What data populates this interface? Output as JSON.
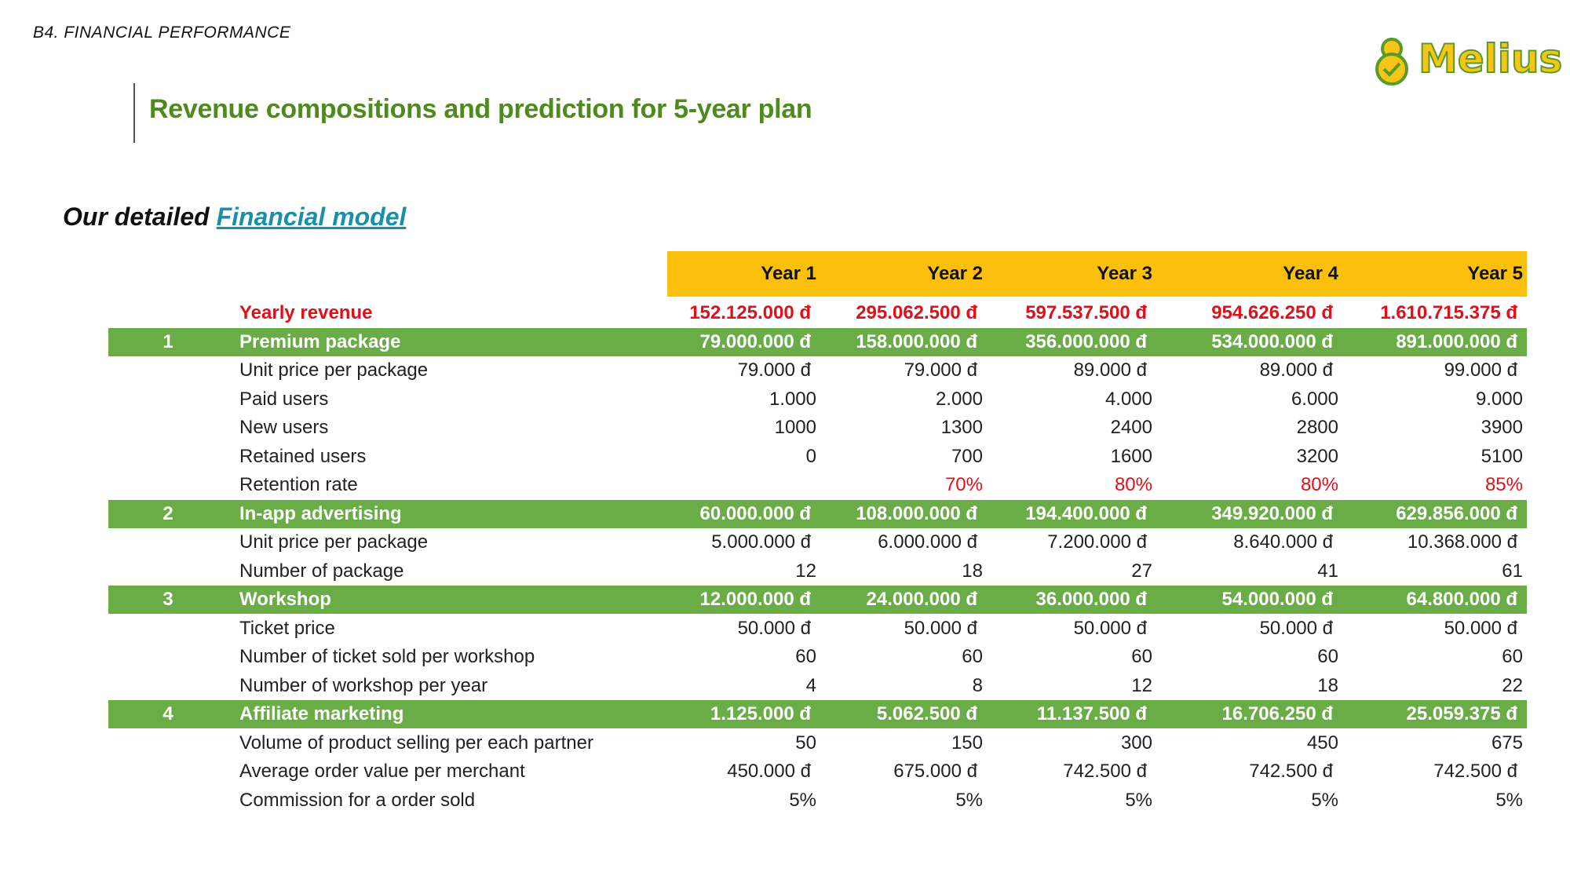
{
  "header": {
    "section": "B4. FINANCIAL PERFORMANCE",
    "logo": "Melius",
    "title": "Revenue compositions and prediction for 5-year plan"
  },
  "subtitle": {
    "text": "Our detailed",
    "link": "Financial model"
  },
  "table": {
    "columns": [
      "Year 1",
      "Year 2",
      "Year 3",
      "Year 4",
      "Year 5"
    ],
    "total": {
      "label": "Yearly revenue",
      "values": [
        "152.125.000 đ",
        "295.062.500 đ",
        "597.537.500 đ",
        "954.626.250 đ",
        "1.610.715.375 đ"
      ]
    },
    "sections": [
      {
        "number": "1",
        "label": "Premium package",
        "values": [
          "79.000.000 đ",
          "158.000.000 đ",
          "356.000.000 đ",
          "534.000.000 đ",
          "891.000.000 đ"
        ],
        "items": [
          {
            "label": "Unit price per package",
            "values": [
              "79.000 đ",
              "79.000 đ",
              "89.000 đ",
              "89.000 đ",
              "99.000 đ"
            ]
          },
          {
            "label": "Paid users",
            "values": [
              "1.000",
              "2.000",
              "4.000",
              "6.000",
              "9.000"
            ]
          },
          {
            "label": "New users",
            "values": [
              "1000",
              "1300",
              "2400",
              "2800",
              "3900"
            ]
          },
          {
            "label": "Retained users",
            "values": [
              "0",
              "700",
              "1600",
              "3200",
              "5100"
            ]
          },
          {
            "label": "Retention rate",
            "values": [
              null,
              "70%",
              "80%",
              "80%",
              "85%"
            ],
            "highlight": true
          }
        ]
      },
      {
        "number": "2",
        "label": "In-app advertising",
        "values": [
          "60.000.000 đ",
          "108.000.000 đ",
          "194.400.000 đ",
          "349.920.000 đ",
          "629.856.000 đ"
        ],
        "items": [
          {
            "label": "Unit price per package",
            "values": [
              "5.000.000 đ",
              "6.000.000 đ",
              "7.200.000 đ",
              "8.640.000 đ",
              "10.368.000 đ"
            ]
          },
          {
            "label": "Number of package",
            "values": [
              "12",
              "18",
              "27",
              "41",
              "61"
            ]
          }
        ]
      },
      {
        "number": "3",
        "label": "Workshop",
        "values": [
          "12.000.000 đ",
          "24.000.000 đ",
          "36.000.000 đ",
          "54.000.000 đ",
          "64.800.000 đ"
        ],
        "items": [
          {
            "label": "Ticket price",
            "values": [
              "50.000 đ",
              "50.000 đ",
              "50.000 đ",
              "50.000 đ",
              "50.000 đ"
            ]
          },
          {
            "label": "Number of ticket sold per workshop",
            "values": [
              "60",
              "60",
              "60",
              "60",
              "60"
            ]
          },
          {
            "label": "Number of workshop per year",
            "values": [
              "4",
              "8",
              "12",
              "18",
              "22"
            ]
          }
        ]
      },
      {
        "number": "4",
        "label": "Affiliate marketing",
        "values": [
          "1.125.000 đ",
          "5.062.500 đ",
          "11.137.500 đ",
          "16.706.250 đ",
          "25.059.375 đ"
        ],
        "items": [
          {
            "label": "Volume of product selling per each partner",
            "values": [
              "50",
              "150",
              "300",
              "450",
              "675"
            ]
          },
          {
            "label": "Average order value per merchant",
            "values": [
              "450.000 đ",
              "675.000 đ",
              "742.500 đ",
              "742.500 đ",
              "742.500 đ"
            ]
          },
          {
            "label": "Commission for a order sold",
            "values": [
              "5%",
              "5%",
              "5%",
              "5%",
              "5%"
            ]
          }
        ]
      }
    ]
  }
}
